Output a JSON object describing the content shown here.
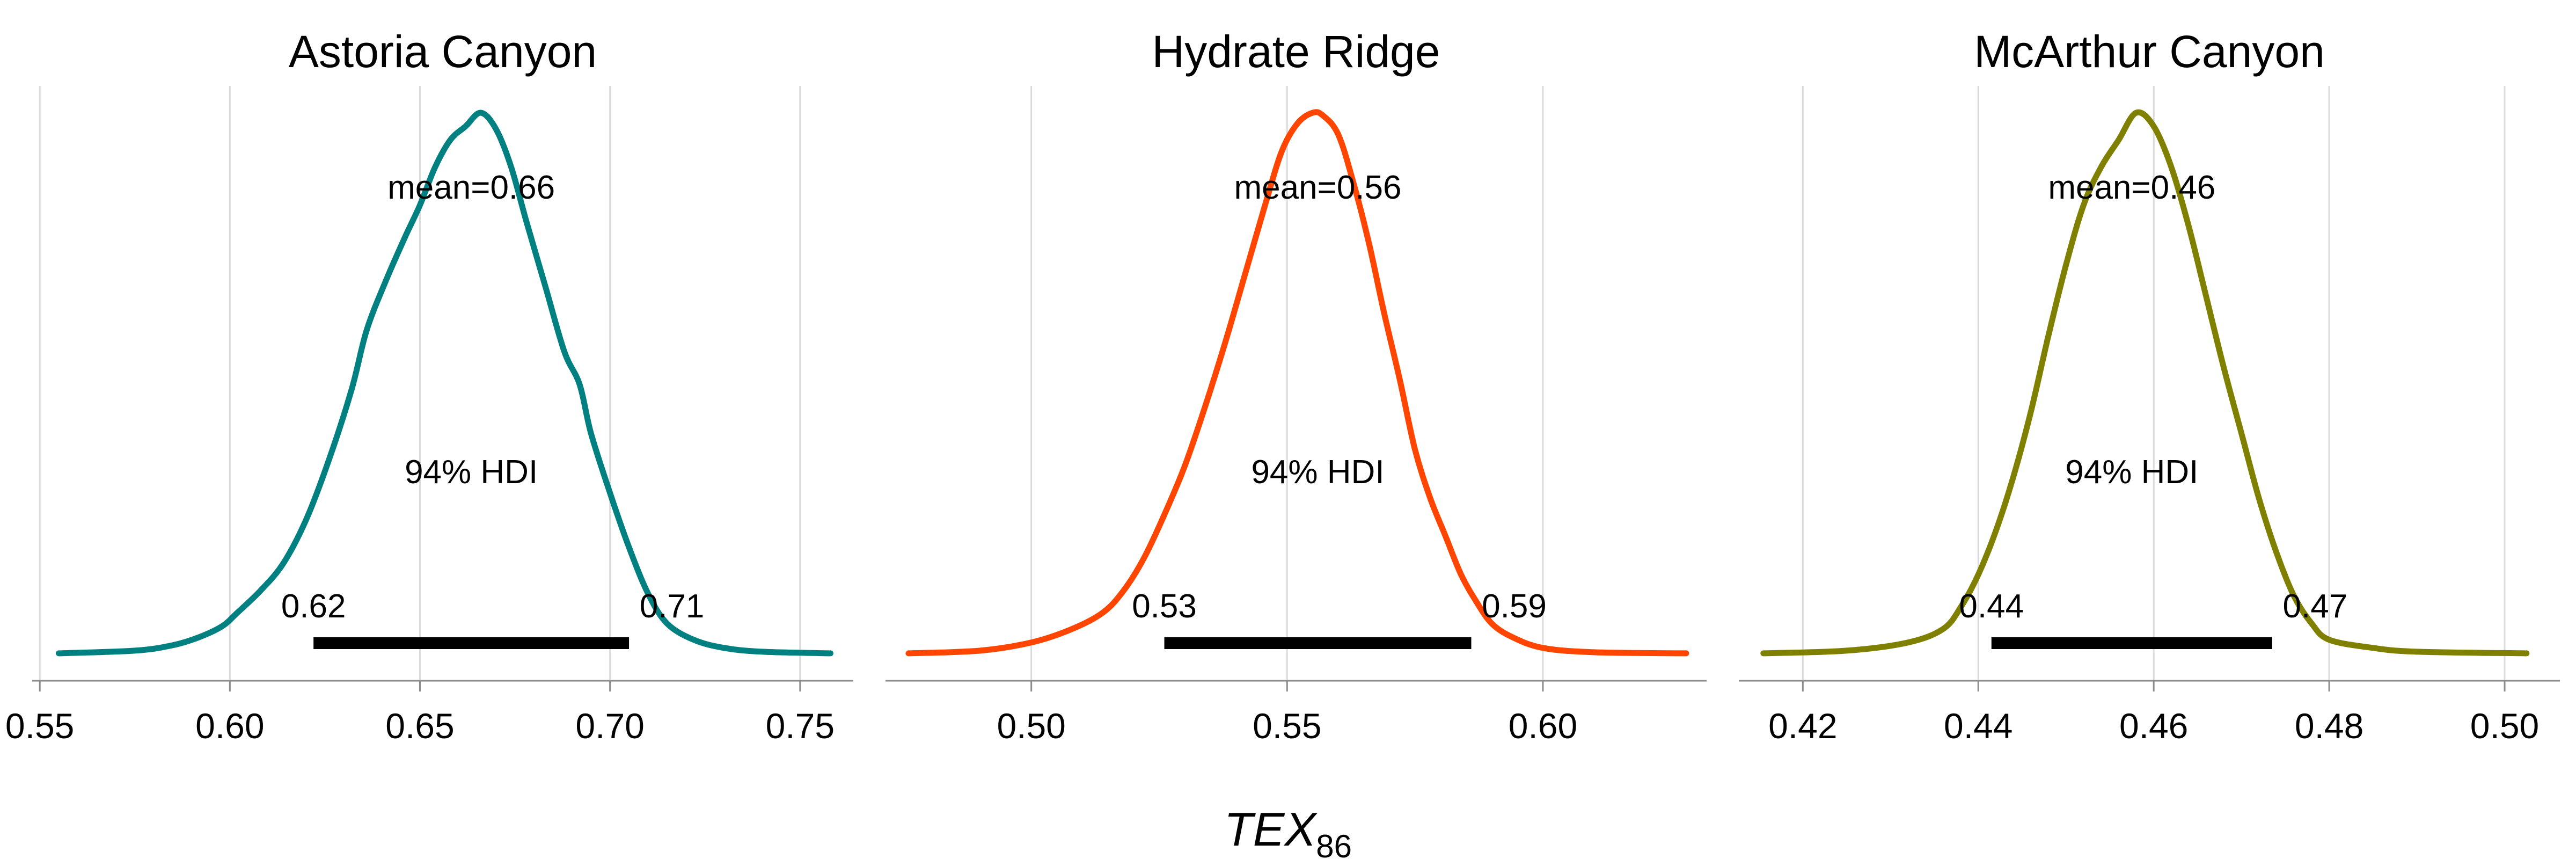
{
  "chart_data": [
    {
      "type": "line",
      "title": "Astoria Canyon",
      "color": "#008080",
      "x_ticks": [
        0.55,
        0.6,
        0.65,
        0.7,
        0.75
      ],
      "x_tick_labels": [
        "0.55",
        "0.60",
        "0.65",
        "0.70",
        "0.75"
      ],
      "xlim": [
        0.548,
        0.764
      ],
      "x": [
        0.555,
        0.575,
        0.585,
        0.592,
        0.598,
        0.602,
        0.608,
        0.614,
        0.62,
        0.626,
        0.632,
        0.636,
        0.641,
        0.646,
        0.65,
        0.654,
        0.658,
        0.662,
        0.666,
        0.67,
        0.674,
        0.678,
        0.683,
        0.688,
        0.692,
        0.695,
        0.7,
        0.705,
        0.71,
        0.715,
        0.722,
        0.73,
        0.74,
        0.758
      ],
      "density": [
        0.5,
        1.0,
        2.0,
        3.5,
        5.5,
        8.0,
        12.0,
        17.0,
        25.0,
        36.0,
        49.0,
        60.0,
        69.0,
        77.0,
        83.0,
        90.0,
        95.0,
        97.5,
        100.0,
        97.0,
        90.0,
        80.0,
        68.0,
        56.0,
        50.0,
        41.0,
        30.0,
        20.0,
        11.5,
        6.0,
        3.0,
        1.5,
        0.8,
        0.5
      ],
      "mean_label": "mean=0.66",
      "hdi_label": "94% HDI",
      "hdi": [
        0.622,
        0.705
      ],
      "hdi_low_label": "0.62",
      "hdi_high_label": "0.71"
    },
    {
      "type": "line",
      "title": "Hydrate Ridge",
      "color": "#ff4500",
      "x_ticks": [
        0.5,
        0.55,
        0.6
      ],
      "x_tick_labels": [
        "0.50",
        "0.55",
        "0.60"
      ],
      "xlim": [
        0.4715,
        0.632
      ],
      "x": [
        0.476,
        0.49,
        0.5,
        0.508,
        0.514,
        0.518,
        0.522,
        0.526,
        0.53,
        0.534,
        0.538,
        0.542,
        0.546,
        0.549,
        0.552,
        0.555,
        0.557,
        0.56,
        0.563,
        0.566,
        0.569,
        0.572,
        0.575,
        0.578,
        0.581,
        0.584,
        0.587,
        0.59,
        0.594,
        0.6,
        0.61,
        0.628
      ],
      "density": [
        0.5,
        1.0,
        2.5,
        5.0,
        8.0,
        12.0,
        18.0,
        26.0,
        35.0,
        46.0,
        58.0,
        71.0,
        84.0,
        93.0,
        98.0,
        100.0,
        99.5,
        96.0,
        87.0,
        76.0,
        63.0,
        51.0,
        38.0,
        29.0,
        22.0,
        15.0,
        10.0,
        6.0,
        3.5,
        1.5,
        0.7,
        0.5
      ],
      "mean_label": "mean=0.56",
      "hdi_label": "94% HDI",
      "hdi": [
        0.526,
        0.586
      ],
      "hdi_low_label": "0.53",
      "hdi_high_label": "0.59"
    },
    {
      "type": "line",
      "title": "McArthur Canyon",
      "color": "#808000",
      "x_ticks": [
        0.42,
        0.44,
        0.46,
        0.48,
        0.5
      ],
      "x_tick_labels": [
        "0.42",
        "0.44",
        "0.46",
        "0.48",
        "0.50"
      ],
      "xlim": [
        0.4127,
        0.5063
      ],
      "x": [
        0.4155,
        0.425,
        0.432,
        0.436,
        0.438,
        0.44,
        0.442,
        0.444,
        0.446,
        0.448,
        0.45,
        0.452,
        0.454,
        0.456,
        0.458,
        0.46,
        0.462,
        0.464,
        0.466,
        0.468,
        0.47,
        0.472,
        0.474,
        0.476,
        0.478,
        0.48,
        0.485,
        0.49,
        0.5025
      ],
      "density": [
        0.5,
        1.0,
        2.5,
        5.0,
        9.0,
        15.0,
        23.0,
        33.0,
        45.0,
        59.0,
        72.0,
        83.0,
        90.0,
        95.0,
        100.0,
        97.5,
        90.0,
        79.0,
        66.0,
        53.0,
        41.0,
        29.0,
        19.0,
        11.0,
        6.0,
        3.0,
        1.5,
        0.8,
        0.5
      ],
      "mean_label": "mean=0.46",
      "hdi_label": "94% HDI",
      "hdi": [
        0.4415,
        0.4735
      ],
      "hdi_low_label": "0.44",
      "hdi_high_label": "0.47"
    }
  ],
  "xlabel": {
    "main": "TEX",
    "sub": "86"
  }
}
